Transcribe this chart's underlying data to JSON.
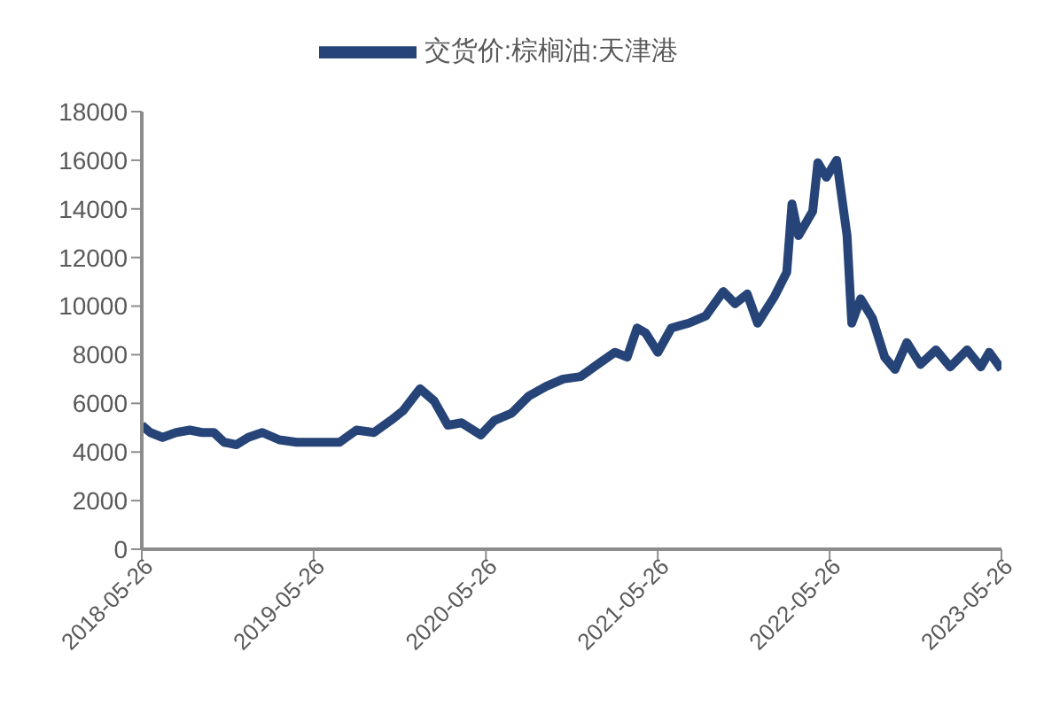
{
  "chart_data": {
    "type": "line",
    "legend": "top",
    "grid": false,
    "marker": "none",
    "line_style": "solid",
    "x": [
      "2018-05-26",
      "2018-06-13",
      "2018-07-09",
      "2018-08-07",
      "2018-09-05",
      "2018-10-01",
      "2018-10-26",
      "2018-11-17",
      "2018-12-13",
      "2019-01-07",
      "2019-02-06",
      "2019-03-14",
      "2019-04-20",
      "2019-05-26",
      "2019-07-20",
      "2019-08-25",
      "2019-10-01",
      "2019-11-06",
      "2019-12-02",
      "2020-01-07",
      "2020-02-06",
      "2020-03-06",
      "2020-04-04",
      "2020-05-15",
      "2020-06-13",
      "2020-07-20",
      "2020-08-25",
      "2020-10-01",
      "2020-11-06",
      "2020-12-13",
      "2021-01-18",
      "2021-02-24",
      "2021-03-22",
      "2021-04-12",
      "2021-04-30",
      "2021-05-26",
      "2021-06-24",
      "2021-07-31",
      "2021-09-05",
      "2021-10-12",
      "2021-11-06",
      "2021-12-02",
      "2021-12-24",
      "2022-01-29",
      "2022-02-24",
      "2022-03-07",
      "2022-03-21",
      "2022-04-20",
      "2022-05-01",
      "2022-05-19",
      "2022-06-10",
      "2022-07-02",
      "2022-07-12",
      "2022-07-31",
      "2022-08-25",
      "2022-09-20",
      "2022-10-12",
      "2022-11-06",
      "2022-12-05",
      "2023-01-07",
      "2023-02-06",
      "2023-03-14",
      "2023-04-12",
      "2023-04-30",
      "2023-05-26"
    ],
    "series": [
      {
        "name": "交货价:棕榈油:天津港",
        "color": "#264478",
        "values": [
          5100,
          4800,
          4600,
          4800,
          4900,
          4800,
          4800,
          4400,
          4300,
          4600,
          4800,
          4500,
          4400,
          4400,
          4400,
          4900,
          4800,
          5300,
          5700,
          6600,
          6100,
          5100,
          5200,
          4700,
          5300,
          5600,
          6300,
          6700,
          7000,
          7100,
          7600,
          8100,
          7900,
          9100,
          8900,
          8100,
          9100,
          9300,
          9600,
          10600,
          10100,
          10500,
          9300,
          10400,
          11400,
          14200,
          12900,
          13900,
          15900,
          15300,
          16000,
          12900,
          9300,
          10300,
          9500,
          7900,
          7400,
          8500,
          7600,
          8200,
          7500,
          8200,
          7500,
          8100,
          7400
        ]
      }
    ],
    "xlim": [
      "2018-05-26",
      "2023-05-26"
    ],
    "xticks": [
      "2018-05-26",
      "2019-05-26",
      "2020-05-26",
      "2021-05-26",
      "2022-05-26",
      "2023-05-26"
    ],
    "ylim": [
      0,
      18000
    ],
    "yticks": [
      0,
      2000,
      4000,
      6000,
      8000,
      10000,
      12000,
      14000,
      16000,
      18000
    ]
  }
}
